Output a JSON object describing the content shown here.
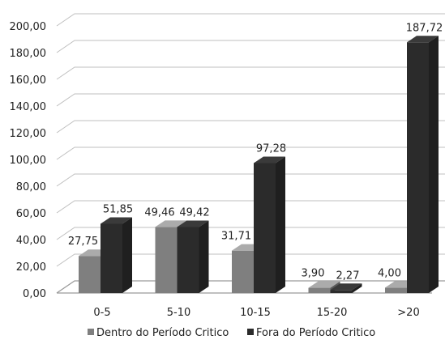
{
  "chart_data": {
    "type": "bar",
    "title": "",
    "xlabel": "",
    "ylabel": "",
    "ylim": [
      0,
      200
    ],
    "ytick_step": 20,
    "yticks": [
      "0,00",
      "20,00",
      "40,00",
      "60,00",
      "80,00",
      "100,00",
      "120,00",
      "140,00",
      "160,00",
      "180,00",
      "200,00"
    ],
    "categories": [
      "0-5",
      "5-10",
      "10-15",
      "15-20",
      ">20"
    ],
    "series": [
      {
        "name": "Dentro do Período Critico",
        "values": [
          27.75,
          49.46,
          31.71,
          3.9,
          4.0
        ],
        "labels": [
          "27,75",
          "49,46",
          "31,71",
          "3,90",
          "4,00"
        ],
        "color": "#7f7f7f"
      },
      {
        "name": "Fora do Período Critico",
        "values": [
          51.85,
          49.42,
          97.28,
          2.27,
          187.72
        ],
        "labels": [
          "51,85",
          "49,42",
          "97,28",
          "2,27",
          "187,72"
        ],
        "color": "#2b2b2b"
      }
    ],
    "grid": true,
    "legend_position": "bottom",
    "style": "3d-bar"
  }
}
